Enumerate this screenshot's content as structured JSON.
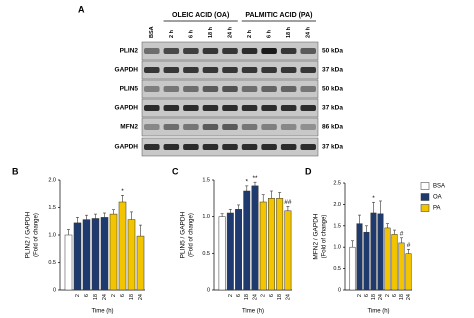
{
  "blot": {
    "panel": "A",
    "groups": [
      "OLEIC ACID (OA)",
      "PALMITIC ACID (PA)"
    ],
    "lanes": [
      "BSA",
      "2 h",
      "6 h",
      "18 h",
      "24 h",
      "2 h",
      "6 h",
      "18 h",
      "24 h"
    ],
    "rows": [
      {
        "protein": "PLIN2",
        "size": "50 kDa"
      },
      {
        "protein": "GAPDH",
        "size": "37 kDa"
      },
      {
        "protein": "PLIN5",
        "size": "50 kDa"
      },
      {
        "protein": "GAPDH",
        "size": "37 kDa"
      },
      {
        "protein": "MFN2",
        "size": "86 kDa"
      },
      {
        "protein": "GAPDH",
        "size": "37 kDa"
      }
    ]
  },
  "chart_data": [
    {
      "type": "bar",
      "panel": "B",
      "ylabel": "PLIN2 / GAPDH",
      "ylabel_note": "(Fold of change)",
      "xlabel": "Time (h)",
      "categories": [
        null,
        "2",
        "6",
        "18",
        "24",
        "2",
        "6",
        "18",
        "24"
      ],
      "ylim": [
        0,
        2
      ],
      "yticks": [
        0,
        0.5,
        {
          "value": 1,
          "label": "1.0"
        },
        1.5,
        {
          "value": 2,
          "label": "2.0"
        }
      ],
      "series": [
        {
          "name": "BSA",
          "color": "#ffffff",
          "values": [
            1.0,
            null,
            null,
            null,
            null,
            null,
            null,
            null,
            null
          ],
          "errors": [
            0.1,
            null,
            null,
            null,
            null,
            null,
            null,
            null,
            null
          ]
        },
        {
          "name": "OA",
          "color": "#1f3a6e",
          "values": [
            null,
            1.22,
            1.28,
            1.3,
            1.32,
            null,
            null,
            null,
            null
          ],
          "errors": [
            null,
            0.1,
            0.08,
            0.08,
            0.08,
            null,
            null,
            null,
            null
          ]
        },
        {
          "name": "PA",
          "color": "#f2c500",
          "values": [
            null,
            null,
            null,
            null,
            null,
            1.38,
            1.6,
            1.28,
            0.98
          ],
          "errors": [
            null,
            null,
            null,
            null,
            null,
            0.08,
            0.12,
            0.14,
            0.2
          ]
        }
      ],
      "annotations": [
        {
          "text": "*",
          "category_index": 6
        }
      ]
    },
    {
      "type": "bar",
      "panel": "C",
      "ylabel": "PLIN5 / GAPDH",
      "ylabel_note": "(Fold of change)",
      "xlabel": "Time (h)",
      "categories": [
        null,
        "2",
        "6",
        "18",
        "24",
        "2",
        "6",
        "18",
        "24"
      ],
      "ylim": [
        0,
        1.5
      ],
      "yticks": [
        0,
        0.5,
        {
          "value": 1,
          "label": "1.0"
        },
        1.5
      ],
      "series": [
        {
          "name": "BSA",
          "color": "#ffffff",
          "values": [
            1.0,
            null,
            null,
            null,
            null,
            null,
            null,
            null,
            null
          ],
          "errors": [
            0.04,
            null,
            null,
            null,
            null,
            null,
            null,
            null,
            null
          ]
        },
        {
          "name": "OA",
          "color": "#1f3a6e",
          "values": [
            null,
            1.05,
            1.1,
            1.35,
            1.42,
            null,
            null,
            null,
            null
          ],
          "errors": [
            null,
            0.05,
            0.06,
            0.07,
            0.05,
            null,
            null,
            null,
            null
          ]
        },
        {
          "name": "PA",
          "color": "#f2c500",
          "values": [
            null,
            null,
            null,
            null,
            null,
            1.2,
            1.25,
            1.25,
            1.08
          ],
          "errors": [
            null,
            null,
            null,
            null,
            null,
            0.1,
            0.1,
            0.08,
            0.06
          ]
        }
      ],
      "annotations": [
        {
          "text": "*",
          "category_index": 3
        },
        {
          "text": "**",
          "category_index": 4
        },
        {
          "text": "##",
          "category_index": 8
        }
      ]
    },
    {
      "type": "bar",
      "panel": "D",
      "ylabel": "MFN2 / GAPDH",
      "ylabel_note": "(Fold of change)",
      "xlabel": "Time (h)",
      "categories": [
        null,
        "2",
        "6",
        "18",
        "24",
        "2",
        "6",
        "18",
        "24"
      ],
      "ylim": [
        0,
        2.5
      ],
      "yticks": [
        0,
        0.5,
        {
          "value": 1,
          "label": "1.0"
        },
        1.5,
        {
          "value": 2,
          "label": "2.0"
        },
        2.5
      ],
      "series": [
        {
          "name": "BSA",
          "color": "#ffffff",
          "values": [
            1.0,
            null,
            null,
            null,
            null,
            null,
            null,
            null,
            null
          ],
          "errors": [
            0.15,
            null,
            null,
            null,
            null,
            null,
            null,
            null,
            null
          ]
        },
        {
          "name": "OA",
          "color": "#1f3a6e",
          "values": [
            null,
            1.55,
            1.35,
            1.8,
            1.78,
            null,
            null,
            null,
            null
          ],
          "errors": [
            null,
            0.2,
            0.15,
            0.25,
            0.3,
            null,
            null,
            null,
            null
          ]
        },
        {
          "name": "PA",
          "color": "#f2c500",
          "values": [
            null,
            null,
            null,
            null,
            null,
            1.45,
            1.3,
            1.1,
            0.85
          ],
          "errors": [
            null,
            null,
            null,
            null,
            null,
            0.1,
            0.1,
            0.12,
            0.1
          ]
        }
      ],
      "annotations": [
        {
          "text": "*",
          "category_index": 3
        },
        {
          "text": "#",
          "category_index": 7
        },
        {
          "text": "#",
          "category_index": 8
        }
      ],
      "legend": "right"
    }
  ]
}
